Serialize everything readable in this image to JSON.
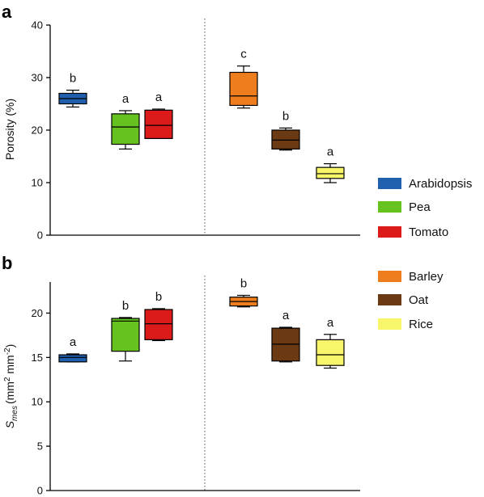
{
  "legend": [
    {
      "name": "Arabidopsis",
      "color": "#1f5fad"
    },
    {
      "name": "Pea",
      "color": "#66c21e"
    },
    {
      "name": "Tomato",
      "color": "#dc1a1a"
    },
    {
      "name": "Barley",
      "color": "#ee7d1e"
    },
    {
      "name": "Oat",
      "color": "#6b3a12"
    },
    {
      "name": "Rice",
      "color": "#f8f56a"
    }
  ],
  "chart_data": [
    {
      "type": "box",
      "panel_label": "a",
      "ylabel": "Porosity (%)",
      "ylim": [
        0,
        40
      ],
      "yticks": [
        0,
        10,
        20,
        30,
        40
      ],
      "groups": [
        {
          "name": "Arabidopsis",
          "color": "#1f5fad",
          "min": 24.4,
          "q1": 25.0,
          "median": 26.0,
          "q3": 27.0,
          "max": 27.6,
          "sig": "b"
        },
        {
          "name": "Pea",
          "color": "#66c21e",
          "min": 16.4,
          "q1": 17.3,
          "median": 20.6,
          "q3": 23.1,
          "max": 23.7,
          "sig": "a"
        },
        {
          "name": "Tomato",
          "color": "#dc1a1a",
          "min": 18.4,
          "q1": 18.4,
          "median": 20.9,
          "q3": 23.8,
          "max": 24.0,
          "sig": "a"
        },
        {
          "name": "Barley",
          "color": "#ee7d1e",
          "min": 24.2,
          "q1": 24.7,
          "median": 26.5,
          "q3": 31.0,
          "max": 32.2,
          "sig": "c"
        },
        {
          "name": "Oat",
          "color": "#6b3a12",
          "min": 16.2,
          "q1": 16.4,
          "median": 18.1,
          "q3": 20.0,
          "max": 20.4,
          "sig": "b"
        },
        {
          "name": "Rice",
          "color": "#f8f56a",
          "min": 10.0,
          "q1": 10.8,
          "median": 11.7,
          "q3": 12.9,
          "max": 13.6,
          "sig": "a"
        }
      ]
    },
    {
      "type": "box",
      "panel_label": "b",
      "ylabel_main": "S",
      "ylabel_sub": "mes",
      "ylabel_unit_prefix": "(mm",
      "ylabel_unit_sup1": "2",
      "ylabel_unit_mid": " mm",
      "ylabel_unit_sup2": "-2",
      "ylabel_unit_suffix": ")",
      "ylim": [
        0,
        23.5
      ],
      "yticks": [
        0,
        5,
        10,
        15,
        20
      ],
      "groups": [
        {
          "name": "Arabidopsis",
          "color": "#1f5fad",
          "min": 14.5,
          "q1": 14.5,
          "median": 15.0,
          "q3": 15.3,
          "max": 15.4,
          "sig": "a"
        },
        {
          "name": "Pea",
          "color": "#66c21e",
          "min": 14.6,
          "q1": 15.7,
          "median": 19.1,
          "q3": 19.4,
          "max": 19.5,
          "sig": "b"
        },
        {
          "name": "Tomato",
          "color": "#dc1a1a",
          "min": 16.9,
          "q1": 17.0,
          "median": 18.8,
          "q3": 20.4,
          "max": 20.5,
          "sig": "b"
        },
        {
          "name": "Barley",
          "color": "#ee7d1e",
          "min": 20.7,
          "q1": 20.8,
          "median": 21.3,
          "q3": 21.8,
          "max": 22.0,
          "sig": "b"
        },
        {
          "name": "Oat",
          "color": "#6b3a12",
          "min": 14.5,
          "q1": 14.6,
          "median": 16.5,
          "q3": 18.3,
          "max": 18.4,
          "sig": "a"
        },
        {
          "name": "Rice",
          "color": "#f8f56a",
          "min": 13.8,
          "q1": 14.1,
          "median": 15.3,
          "q3": 17.0,
          "max": 17.6,
          "sig": "a"
        }
      ]
    }
  ]
}
